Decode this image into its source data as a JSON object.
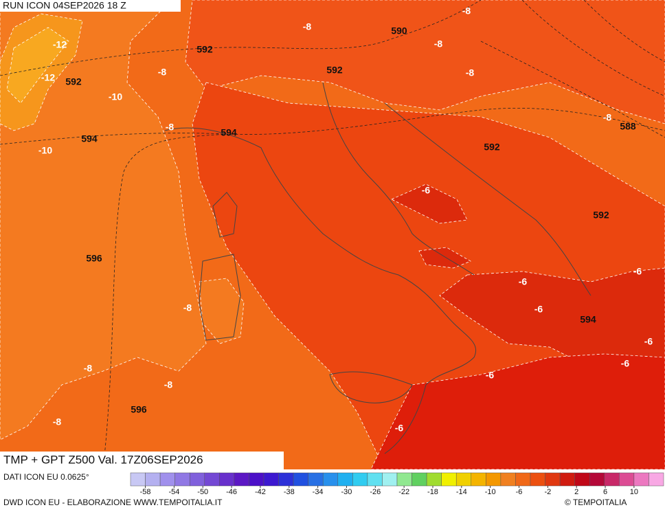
{
  "header": {
    "run": "RUN ICON 04SEP2026 18 Z",
    "title": "TMP + GPT Z500 Val. 17Z06SEP2026"
  },
  "map": {
    "labels": [
      "-8",
      "-8",
      "590",
      "-8",
      "-12",
      "592",
      "-12",
      "592",
      "-8",
      "592",
      "-8",
      "-10",
      "-8",
      "588",
      "-8",
      "594",
      "594",
      "-10",
      "592",
      "-6",
      "592",
      "596",
      "-6",
      "-6",
      "-8",
      "-6",
      "594",
      "-6",
      "-6",
      "-8",
      "-6",
      "-8",
      "596",
      "-8",
      "-6"
    ]
  },
  "footer": {
    "data_source": "DATI ICON EU 0.0625°",
    "credit": "DWD ICON EU - ELABORAZIONE WWW.TEMPOITALIA.IT",
    "copyright": "© TEMPOITALIA"
  },
  "colorbar": {
    "ticks": [
      -58,
      -54,
      -50,
      -46,
      -42,
      -38,
      -34,
      -30,
      -26,
      -22,
      -18,
      -14,
      -10,
      -6,
      -2,
      2,
      6,
      10
    ],
    "colors": [
      "#c8c8f4",
      "#b4b0f0",
      "#a090ec",
      "#9078e4",
      "#8060dc",
      "#7448d4",
      "#6830cc",
      "#5c18c4",
      "#4c10c8",
      "#3c18d0",
      "#2c30d8",
      "#2050e0",
      "#2870e4",
      "#2890ec",
      "#20b0f0",
      "#30ccf0",
      "#60e0f0",
      "#a0f0f0",
      "#90e890",
      "#60d060",
      "#a0dc30",
      "#f0f000",
      "#f0d000",
      "#f4b400",
      "#f49800",
      "#f08020",
      "#f06818",
      "#ec5010",
      "#e03810",
      "#d01c10",
      "#c00818",
      "#b40838",
      "#c82868",
      "#dc4c94",
      "#ec78c0",
      "#f8a8e4"
    ]
  }
}
